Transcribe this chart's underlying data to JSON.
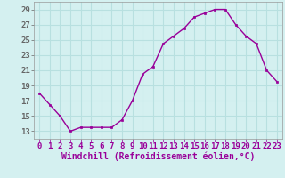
{
  "x": [
    0,
    1,
    2,
    3,
    4,
    5,
    6,
    7,
    8,
    9,
    10,
    11,
    12,
    13,
    14,
    15,
    16,
    17,
    18,
    19,
    20,
    21,
    22,
    23
  ],
  "y": [
    18.0,
    16.5,
    15.0,
    13.0,
    13.5,
    13.5,
    13.5,
    13.5,
    14.5,
    17.0,
    20.5,
    21.5,
    24.5,
    25.5,
    26.5,
    28.0,
    28.5,
    29.0,
    29.0,
    27.0,
    25.5,
    24.5,
    21.0,
    19.5
  ],
  "line_color": "#990099",
  "marker": "s",
  "marker_size": 2,
  "xlim": [
    -0.5,
    23.5
  ],
  "ylim": [
    12,
    30
  ],
  "yticks": [
    13,
    15,
    17,
    19,
    21,
    23,
    25,
    27,
    29
  ],
  "xticks": [
    0,
    1,
    2,
    3,
    4,
    5,
    6,
    7,
    8,
    9,
    10,
    11,
    12,
    13,
    14,
    15,
    16,
    17,
    18,
    19,
    20,
    21,
    22,
    23
  ],
  "xlabel": "Windchill (Refroidissement éolien,°C)",
  "background_color": "#d4f0f0",
  "grid_color": "#b8e0e0",
  "tick_label_fontsize": 6.5,
  "xlabel_fontsize": 7
}
